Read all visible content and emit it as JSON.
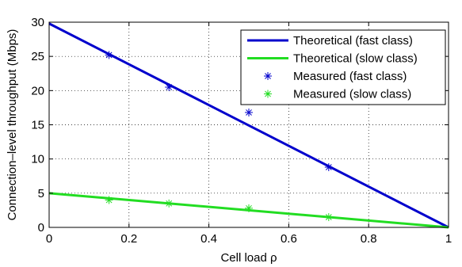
{
  "chart_data": {
    "type": "line",
    "xlabel": "Cell load ρ",
    "ylabel": "Connection–level throughput (Mbps)",
    "xlim": [
      0,
      1
    ],
    "ylim": [
      0,
      30
    ],
    "xticks": [
      0,
      0.2,
      0.4,
      0.6,
      0.8,
      1
    ],
    "xtick_labels": [
      "0",
      "0.2",
      "0.4",
      "0.6",
      "0.8",
      "1"
    ],
    "yticks": [
      0,
      5,
      10,
      15,
      20,
      25,
      30
    ],
    "ytick_labels": [
      "0",
      "5",
      "10",
      "15",
      "20",
      "25",
      "30"
    ],
    "grid": true,
    "legend_position": "top-right",
    "series": [
      {
        "name": "Theoretical (fast class)",
        "kind": "line",
        "color": "#0000cc",
        "x": [
          0,
          1
        ],
        "y": [
          29.8,
          0
        ]
      },
      {
        "name": "Theoretical (slow class)",
        "kind": "line",
        "color": "#22dd22",
        "x": [
          0,
          1
        ],
        "y": [
          5.0,
          0
        ]
      },
      {
        "name": "Measured (fast class)",
        "kind": "marker",
        "marker": "*",
        "color": "#0000cc",
        "x": [
          0.15,
          0.3,
          0.5,
          0.7
        ],
        "y": [
          25.2,
          20.5,
          16.8,
          8.8
        ]
      },
      {
        "name": "Measured (slow class)",
        "kind": "marker",
        "marker": "*",
        "color": "#22dd22",
        "x": [
          0.15,
          0.3,
          0.5,
          0.7
        ],
        "y": [
          4.0,
          3.5,
          2.8,
          1.5
        ]
      }
    ]
  }
}
